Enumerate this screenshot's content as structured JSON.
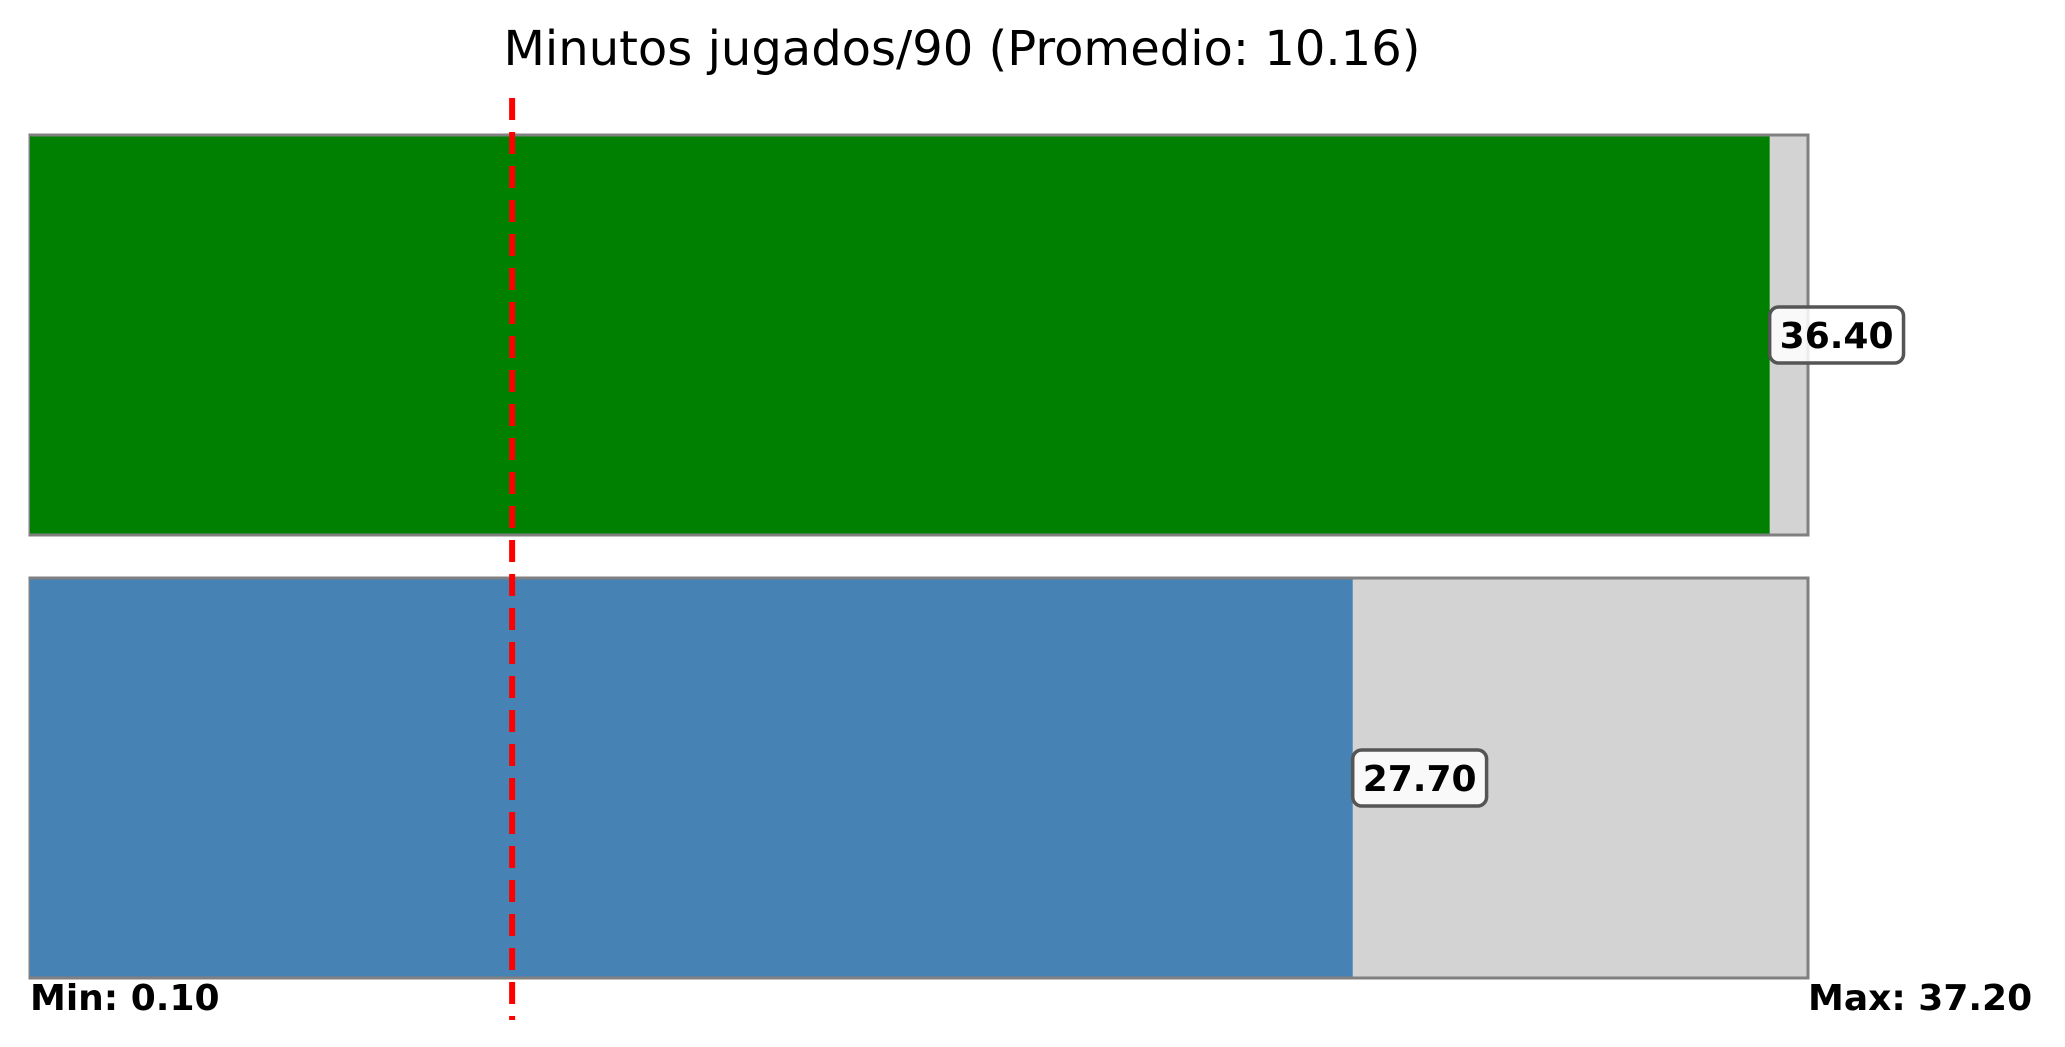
{
  "chart_data": {
    "type": "bar",
    "orientation": "horizontal",
    "title": "Minutos jugados/90 (Promedio: 10.16)",
    "xlim": [
      0.1,
      37.2
    ],
    "average": 10.16,
    "min_label": "Min: 0.10",
    "max_label": "Max: 37.20",
    "grid": false,
    "series": [
      {
        "value": 36.4,
        "label": "36.40",
        "color": "#008000"
      },
      {
        "value": 27.7,
        "label": "27.70",
        "color": "#4682b4"
      }
    ],
    "colors": {
      "track": "#d3d3d3",
      "track_border": "#808080",
      "average_line": "#ff0000"
    }
  }
}
